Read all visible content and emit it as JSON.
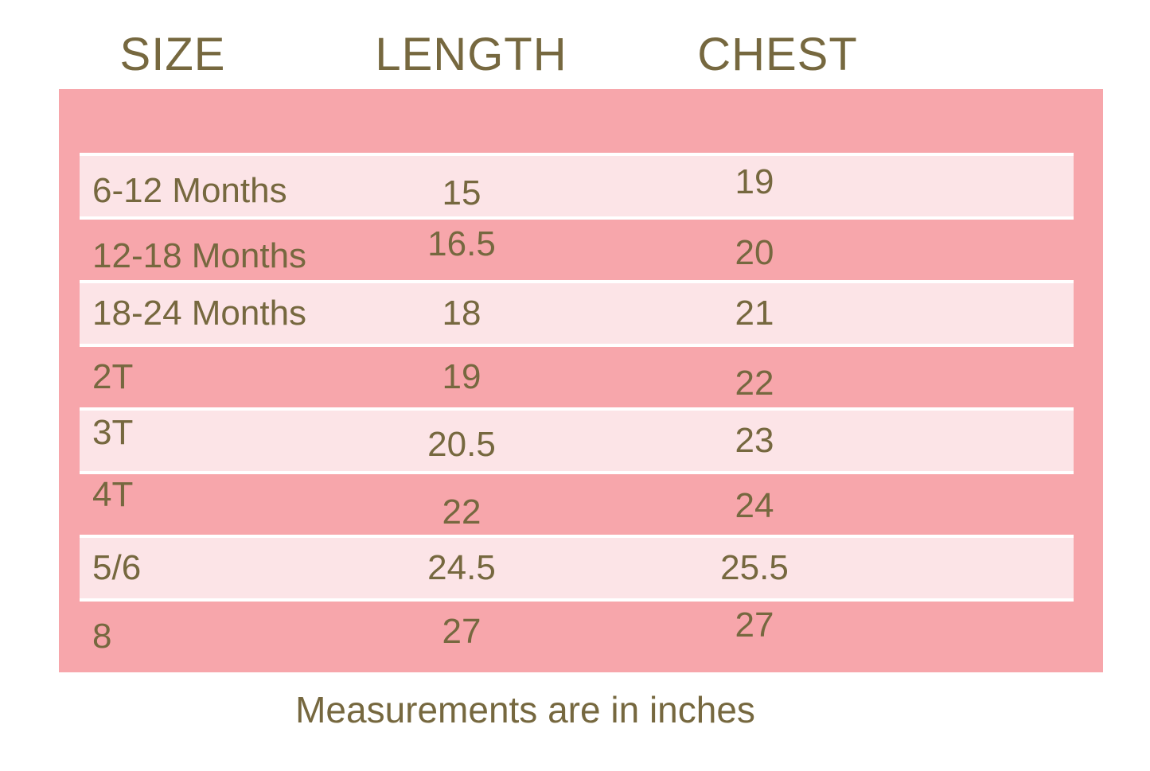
{
  "colors": {
    "page_bg": "#FFFFFF",
    "table_bg": "#F7A6AB",
    "row_alt_bg": "#FCE4E7",
    "separator": "#FFFFFF",
    "text": "#76683F"
  },
  "chart_data": {
    "type": "table",
    "columns": [
      "SIZE",
      "LENGTH",
      "CHEST"
    ],
    "rows": [
      [
        "6-12 Months",
        15,
        19
      ],
      [
        "12-18 Months",
        16.5,
        20
      ],
      [
        "18-24 Months",
        18,
        21
      ],
      [
        "2T",
        19,
        22
      ],
      [
        "3T",
        20.5,
        23
      ],
      [
        "4T",
        22,
        24
      ],
      [
        "5/6",
        24.5,
        25.5
      ],
      [
        "8",
        27,
        27
      ]
    ],
    "note": "Measurements are in inches",
    "units": "inches",
    "layout": "alternating light/dark pink row bands with white separators on a pink panel"
  },
  "footer": {
    "note": "Measurements are in inches"
  }
}
